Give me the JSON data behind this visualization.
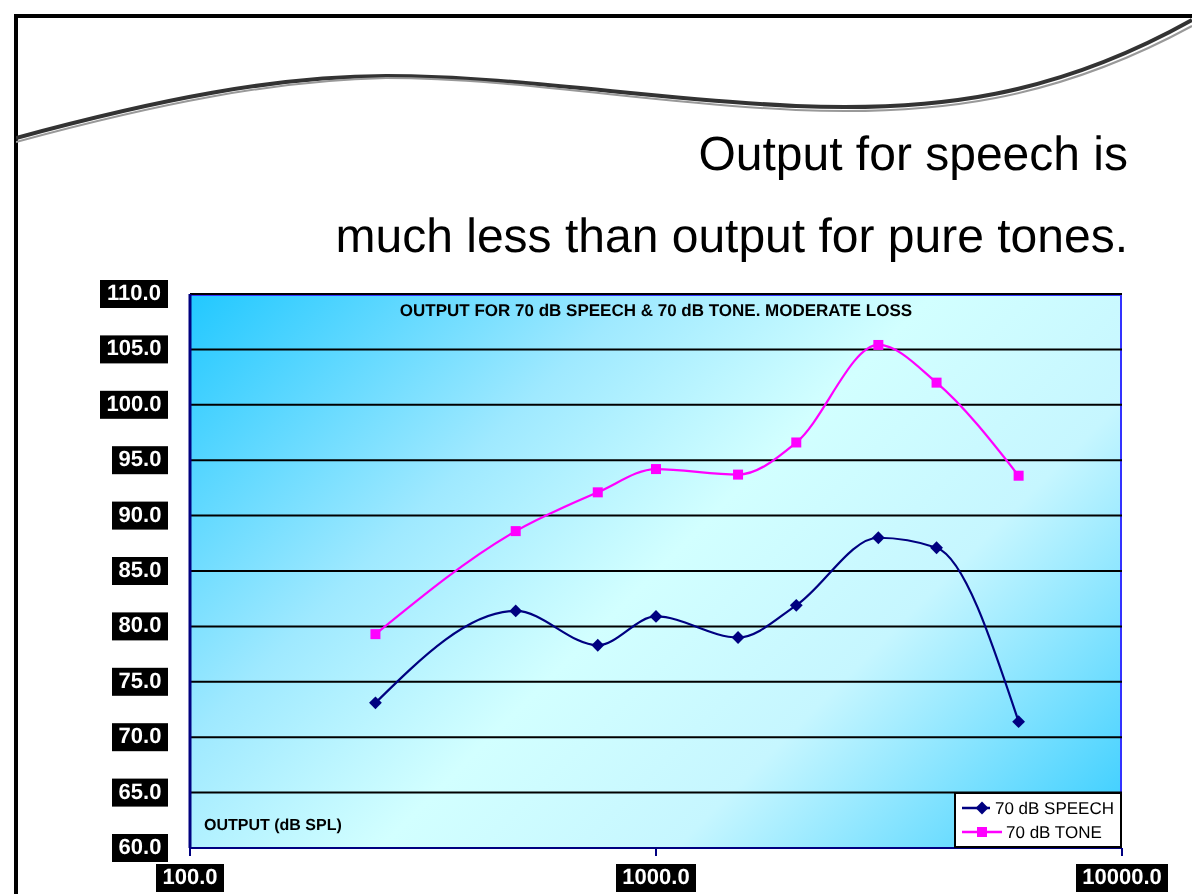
{
  "chart_data": {
    "type": "line",
    "title": "Output for speech is\nmuch less than output for pure tones.",
    "subtitle": "OUTPUT FOR 70 dB SPEECH & 70 dB TONE. MODERATE LOSS",
    "ylabel": "OUTPUT (dB SPL)",
    "x": [
      250,
      500,
      750,
      1000,
      1500,
      2000,
      3000,
      4000,
      6000
    ],
    "series": [
      {
        "name": "70 dB SPEECH",
        "color": "#000080",
        "marker": "diamond",
        "values": [
          73.1,
          81.4,
          78.3,
          80.9,
          79.0,
          81.9,
          88.0,
          87.1,
          71.4
        ]
      },
      {
        "name": "70 dB TONE",
        "color": "#ff00ff",
        "marker": "square",
        "values": [
          79.3,
          88.6,
          92.1,
          94.2,
          93.7,
          96.6,
          105.4,
          102.0,
          93.6
        ]
      }
    ],
    "log": "x",
    "xlim": [
      100,
      10000
    ],
    "xticks": [
      {
        "value": 100,
        "label": "100.0"
      },
      {
        "value": 1000,
        "label": "1000.0"
      },
      {
        "value": 10000,
        "label": "10000.0"
      }
    ],
    "ylim": [
      60,
      110
    ],
    "yticks": [
      {
        "value": 60,
        "label": "60.0"
      },
      {
        "value": 65,
        "label": "65.0"
      },
      {
        "value": 70,
        "label": "70.0"
      },
      {
        "value": 75,
        "label": "75.0"
      },
      {
        "value": 80,
        "label": "80.0"
      },
      {
        "value": 85,
        "label": "85.0"
      },
      {
        "value": 90,
        "label": "90.0"
      },
      {
        "value": 95,
        "label": "95.0"
      },
      {
        "value": 100,
        "label": "100.0"
      },
      {
        "value": 105,
        "label": "105.0"
      },
      {
        "value": 110,
        "label": "110.0"
      }
    ],
    "grid": "y",
    "legend": "bottom right",
    "line_style": "solid"
  }
}
